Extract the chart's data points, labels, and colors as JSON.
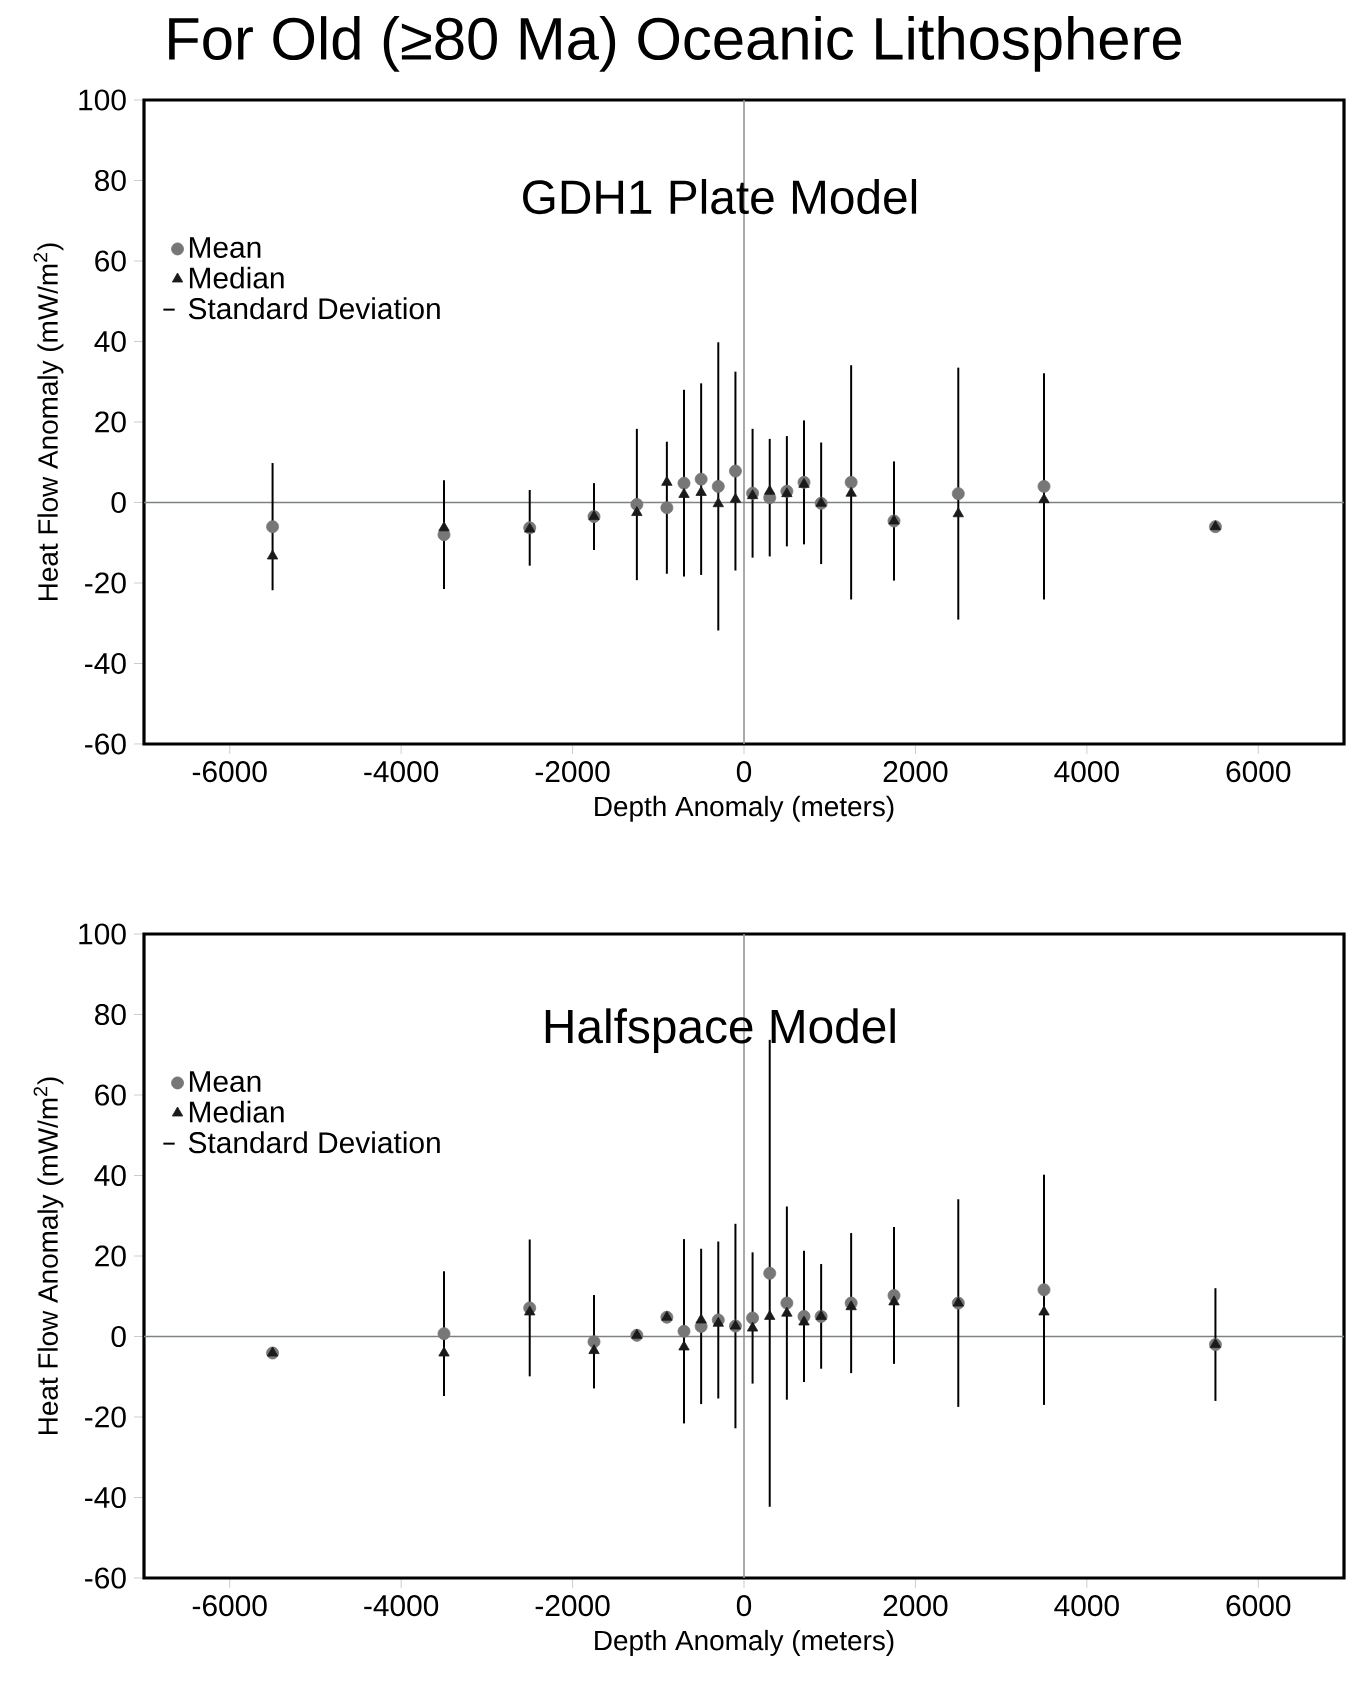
{
  "chart_data": [
    {
      "type": "scatter",
      "title": "For Old (≥80 Ma) Oceanic Lithosphere",
      "subtitle": "GDH1 Plate Model",
      "xlabel": "Depth Anomaly (meters)",
      "ylabel": "Heat Flow Anomaly (mW/m$^{2}$)",
      "x": [
        -5500,
        -3500,
        -2500,
        -1750,
        -1250,
        -900,
        -700,
        -500,
        -300,
        -100,
        100,
        300,
        500,
        700,
        900,
        1250,
        1750,
        2500,
        3500,
        5500
      ],
      "series": [
        {
          "name": "Mean",
          "color": "#777777",
          "marker": "circle",
          "values": [
            -6,
            -8,
            -6.3,
            -3.5,
            -0.5,
            -1.3,
            4.8,
            5.8,
            4,
            7.8,
            2.3,
            1.2,
            2.8,
            5,
            -0.2,
            5,
            -4.6,
            2.2,
            4,
            -6
          ],
          "errors": [
            15.8,
            13.5,
            9.4,
            8.3,
            18.8,
            16.4,
            23.2,
            23.8,
            35.8,
            24.7,
            16,
            14.6,
            13.7,
            15.4,
            15.1,
            29.1,
            14.8,
            31.3,
            28.1,
            null
          ]
        },
        {
          "name": "Median",
          "color": "#1a1a1a",
          "marker": "triangle",
          "values": [
            -13.3,
            -6.3,
            -6.6,
            -3.5,
            -2.5,
            5,
            2,
            2.5,
            -0.3,
            0.8,
            1.7,
            2.8,
            2.2,
            4.5,
            -0.2,
            2.3,
            -4.6,
            -2.8,
            0.7,
            -6
          ]
        }
      ],
      "annotations": [
        "Standard Deviation"
      ],
      "xlim": [
        -7000,
        7000
      ],
      "ylim": [
        -60,
        100
      ],
      "xticks": [
        -6000,
        -4000,
        -2000,
        0,
        2000,
        4000,
        6000
      ],
      "yticks": [
        -60,
        -40,
        -20,
        0,
        20,
        40,
        60,
        80,
        100
      ],
      "ref_lines": [
        {
          "axis": "x",
          "value": 0,
          "color": "#959595"
        },
        {
          "axis": "y",
          "value": 0,
          "color": "#7a8580"
        }
      ],
      "legend": "top left"
    },
    {
      "type": "scatter",
      "subtitle": "Halfspace Model",
      "xlabel": "Depth Anomaly (meters)",
      "ylabel": "Heat Flow Anomaly (mW/m$^{2}$)",
      "x": [
        -5500,
        -3500,
        -2500,
        -1750,
        -1250,
        -900,
        -700,
        -500,
        -300,
        -100,
        100,
        300,
        500,
        700,
        900,
        1250,
        1750,
        2500,
        3500,
        5500
      ],
      "series": [
        {
          "name": "Mean",
          "color": "#777777",
          "marker": "circle",
          "values": [
            -4.1,
            0.7,
            7.1,
            -1.3,
            0.3,
            4.8,
            1.3,
            2.5,
            4.1,
            2.6,
            4.6,
            15.7,
            8.3,
            5,
            5,
            8.3,
            10.2,
            8.3,
            11.6,
            -2
          ],
          "errors": [
            null,
            15.5,
            17,
            11.6,
            null,
            null,
            22.9,
            19.3,
            19.5,
            25.4,
            16.3,
            58,
            24,
            16.3,
            13,
            17.4,
            17,
            25.8,
            28.6,
            14
          ]
        },
        {
          "name": "Median",
          "color": "#1a1a1a",
          "marker": "triangle",
          "values": [
            -4.1,
            -4.1,
            6.1,
            -3.5,
            0.3,
            4.8,
            -2.6,
            4.1,
            3.3,
            2.6,
            2.1,
            5,
            5.8,
            3.6,
            5,
            7.4,
            8.6,
            8.3,
            6.1,
            -2
          ]
        }
      ],
      "annotations": [
        "Standard Deviation"
      ],
      "xlim": [
        -7000,
        7000
      ],
      "ylim": [
        -60,
        100
      ],
      "xticks": [
        -6000,
        -4000,
        -2000,
        0,
        2000,
        4000,
        6000
      ],
      "yticks": [
        -60,
        -40,
        -20,
        0,
        20,
        40,
        60,
        80,
        100
      ],
      "ref_lines": [
        {
          "axis": "x",
          "value": 0,
          "color": "#959595"
        },
        {
          "axis": "y",
          "value": 0,
          "color": "#7a8580"
        }
      ],
      "legend": "top left"
    }
  ]
}
